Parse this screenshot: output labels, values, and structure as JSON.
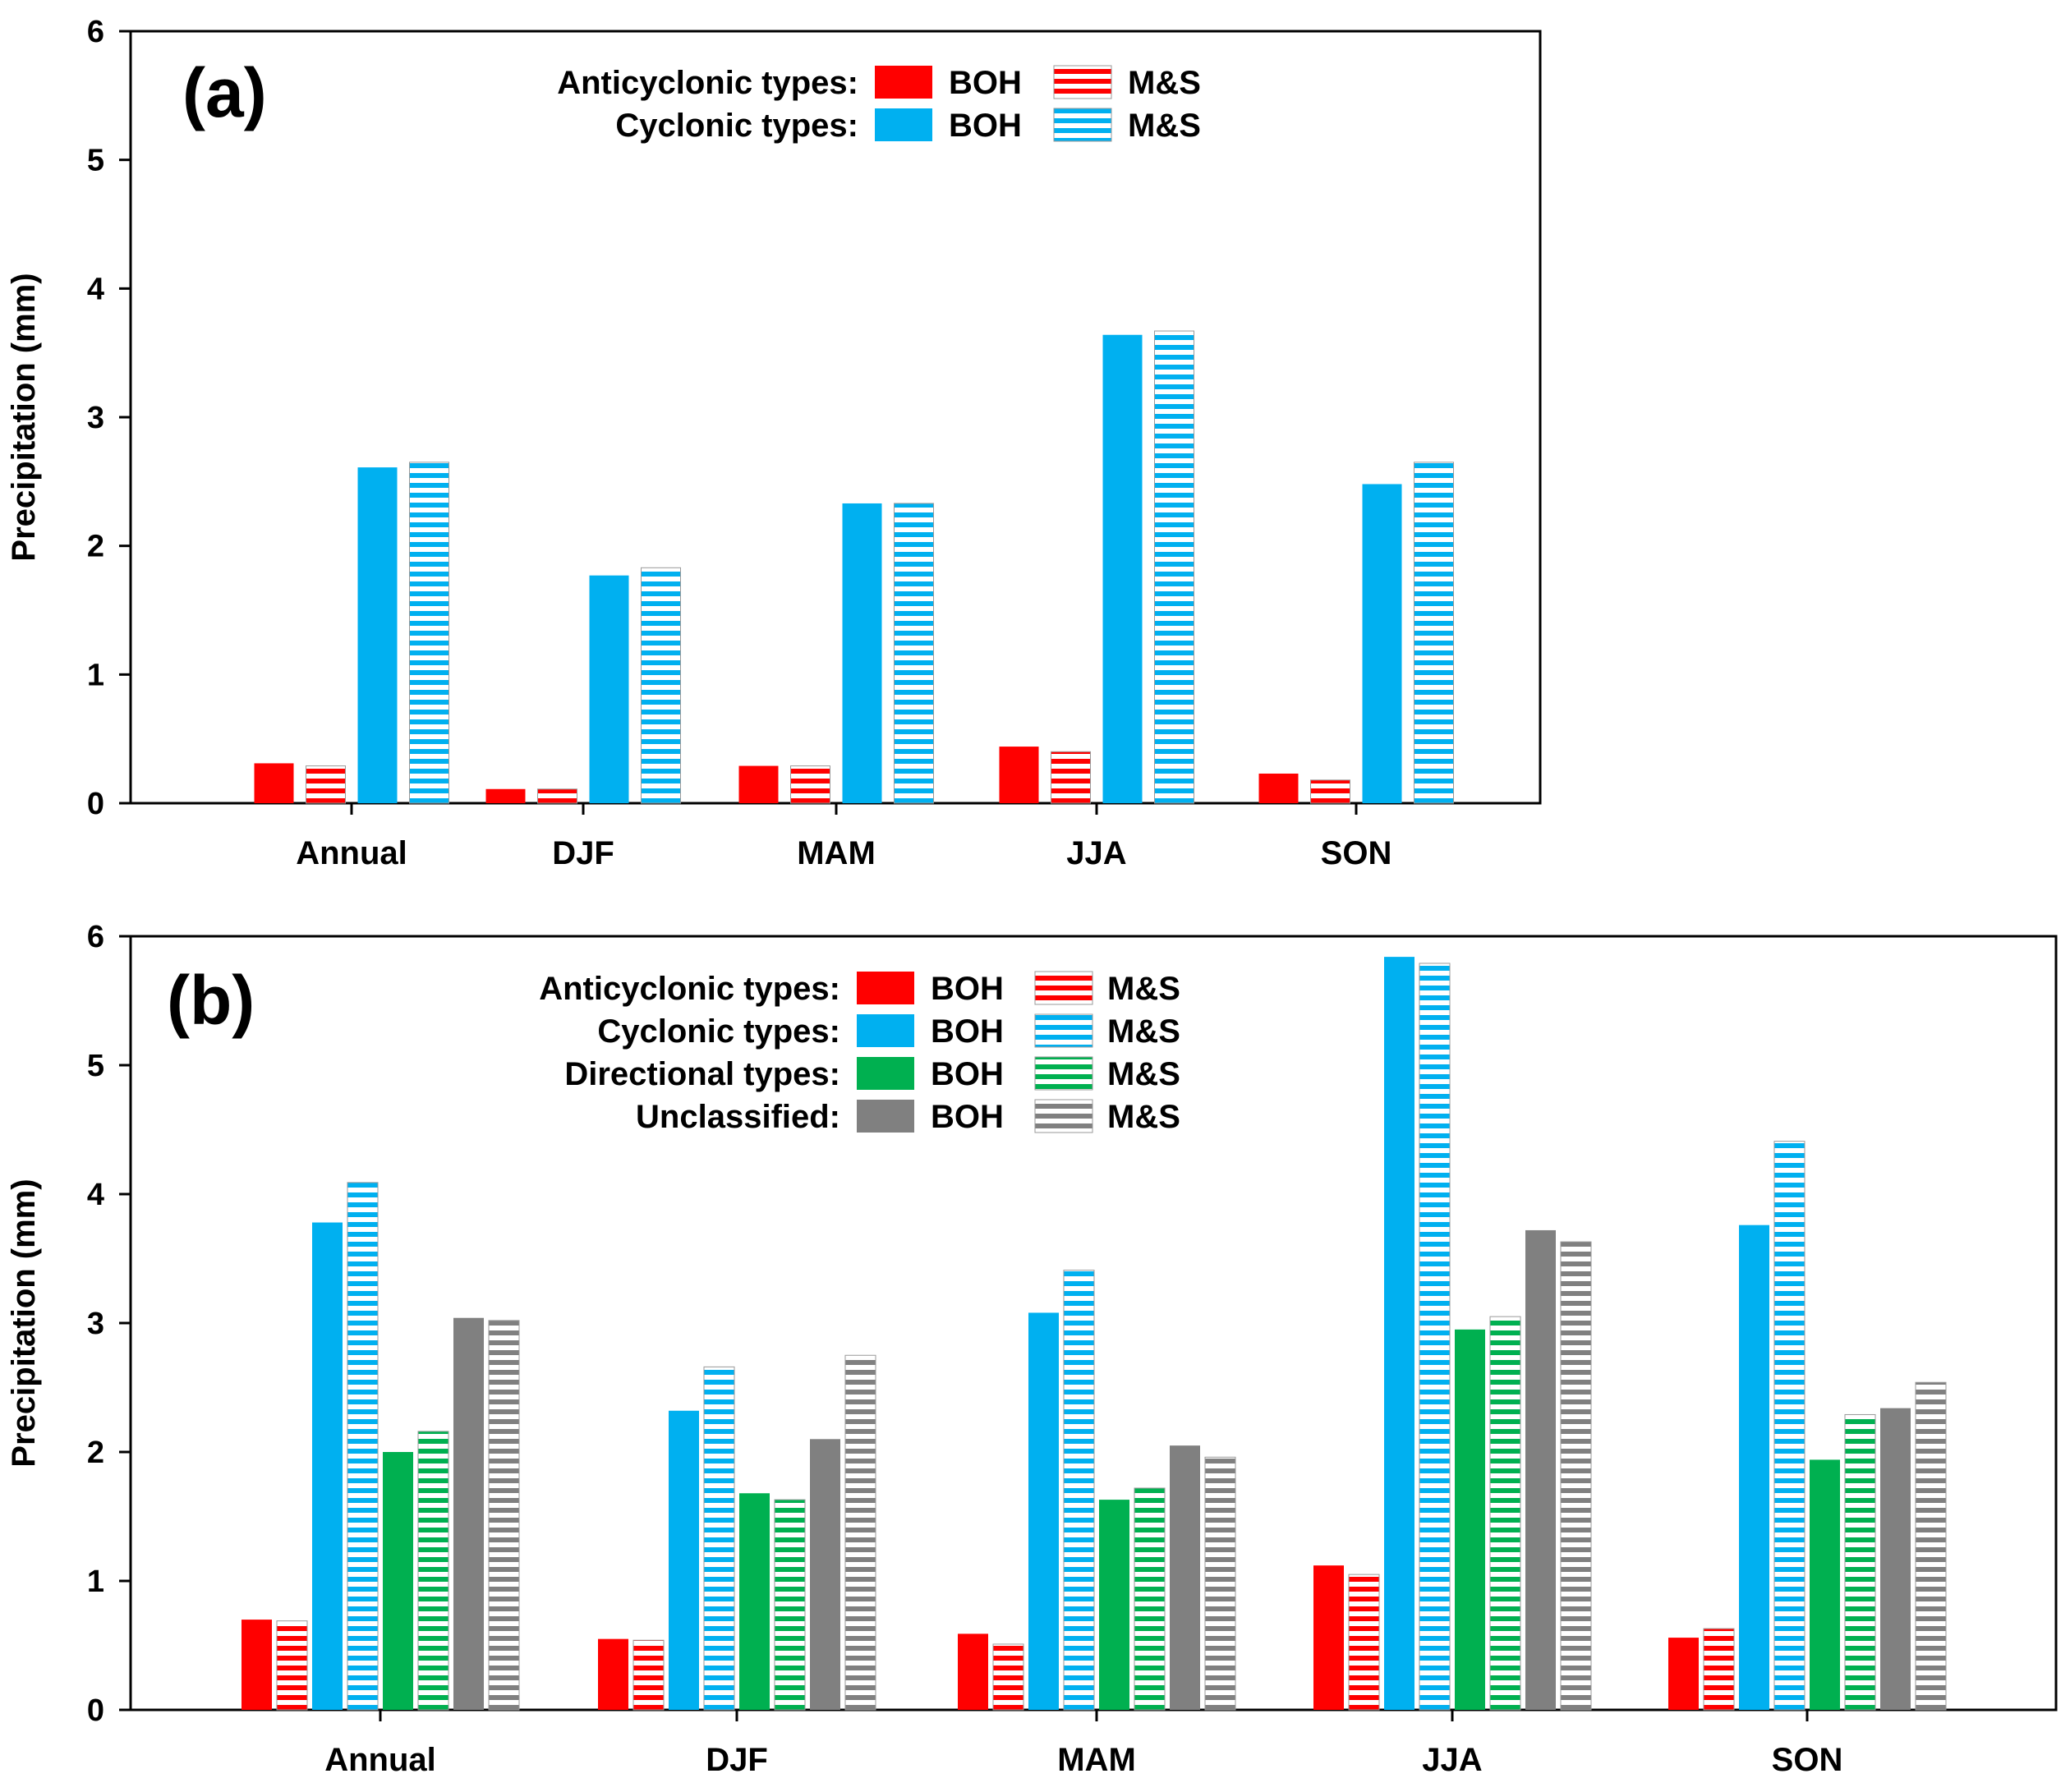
{
  "chart_data": [
    {
      "type": "bar",
      "panel_label": "(a)",
      "ylabel": "Precipitation (mm)",
      "ylim": [
        0,
        6
      ],
      "yticks": [
        "0",
        "1",
        "2",
        "3",
        "4",
        "5",
        "6"
      ],
      "categories": [
        "Annual",
        "DJF",
        "MAM",
        "JJA",
        "SON"
      ],
      "legend": [
        {
          "label": "Anticyclonic types:",
          "boh": "BOH",
          "ms": "M&S"
        },
        {
          "label": "Cyclonic types:",
          "boh": "BOH",
          "ms": "M&S"
        }
      ],
      "series": [
        {
          "name": "Anticyclonic BOH",
          "color": "#ff0000",
          "pattern": "solid",
          "values": [
            0.31,
            0.11,
            0.29,
            0.44,
            0.23
          ]
        },
        {
          "name": "Anticyclonic M&S",
          "color": "#ff0000",
          "pattern": "hatched",
          "values": [
            0.29,
            0.11,
            0.29,
            0.4,
            0.18
          ]
        },
        {
          "name": "Cyclonic BOH",
          "color": "#00b0f0",
          "pattern": "solid",
          "values": [
            2.61,
            1.77,
            2.33,
            3.64,
            2.48
          ]
        },
        {
          "name": "Cyclonic M&S",
          "color": "#00b0f0",
          "pattern": "hatched",
          "values": [
            2.65,
            1.83,
            2.33,
            3.67,
            2.65
          ]
        }
      ]
    },
    {
      "type": "bar",
      "panel_label": "(b)",
      "ylabel": "Precipitation (mm)",
      "ylim": [
        0,
        6
      ],
      "yticks": [
        "0",
        "1",
        "2",
        "3",
        "4",
        "5",
        "6"
      ],
      "categories": [
        "Annual",
        "DJF",
        "MAM",
        "JJA",
        "SON"
      ],
      "legend": [
        {
          "label": "Anticyclonic types:",
          "boh": "BOH",
          "ms": "M&S"
        },
        {
          "label": "Cyclonic types:",
          "boh": "BOH",
          "ms": "M&S"
        },
        {
          "label": "Directional types:",
          "boh": "BOH",
          "ms": "M&S"
        },
        {
          "label": "Unclassified:",
          "boh": "BOH",
          "ms": "M&S"
        }
      ],
      "series": [
        {
          "name": "Anticyclonic BOH",
          "color": "#ff0000",
          "pattern": "solid",
          "values": [
            0.7,
            0.55,
            0.59,
            1.12,
            0.56
          ]
        },
        {
          "name": "Anticyclonic M&S",
          "color": "#ff0000",
          "pattern": "hatched",
          "values": [
            0.69,
            0.54,
            0.51,
            1.05,
            0.63
          ]
        },
        {
          "name": "Cyclonic BOH",
          "color": "#00b0f0",
          "pattern": "solid",
          "values": [
            3.78,
            2.32,
            3.08,
            5.84,
            3.76
          ]
        },
        {
          "name": "Cyclonic M&S",
          "color": "#00b0f0",
          "pattern": "hatched",
          "values": [
            4.09,
            2.66,
            3.41,
            5.79,
            4.41
          ]
        },
        {
          "name": "Directional BOH",
          "color": "#00b050",
          "pattern": "solid",
          "values": [
            2.0,
            1.68,
            1.63,
            2.95,
            1.94
          ]
        },
        {
          "name": "Directional M&S",
          "color": "#00b050",
          "pattern": "hatched",
          "values": [
            2.16,
            1.63,
            1.72,
            3.05,
            2.29
          ]
        },
        {
          "name": "Unclassified BOH",
          "color": "#808080",
          "pattern": "solid",
          "values": [
            3.04,
            2.1,
            2.05,
            3.72,
            2.34
          ]
        },
        {
          "name": "Unclassified M&S",
          "color": "#808080",
          "pattern": "hatched",
          "values": [
            3.02,
            2.75,
            1.96,
            3.63,
            2.54
          ]
        }
      ]
    }
  ]
}
